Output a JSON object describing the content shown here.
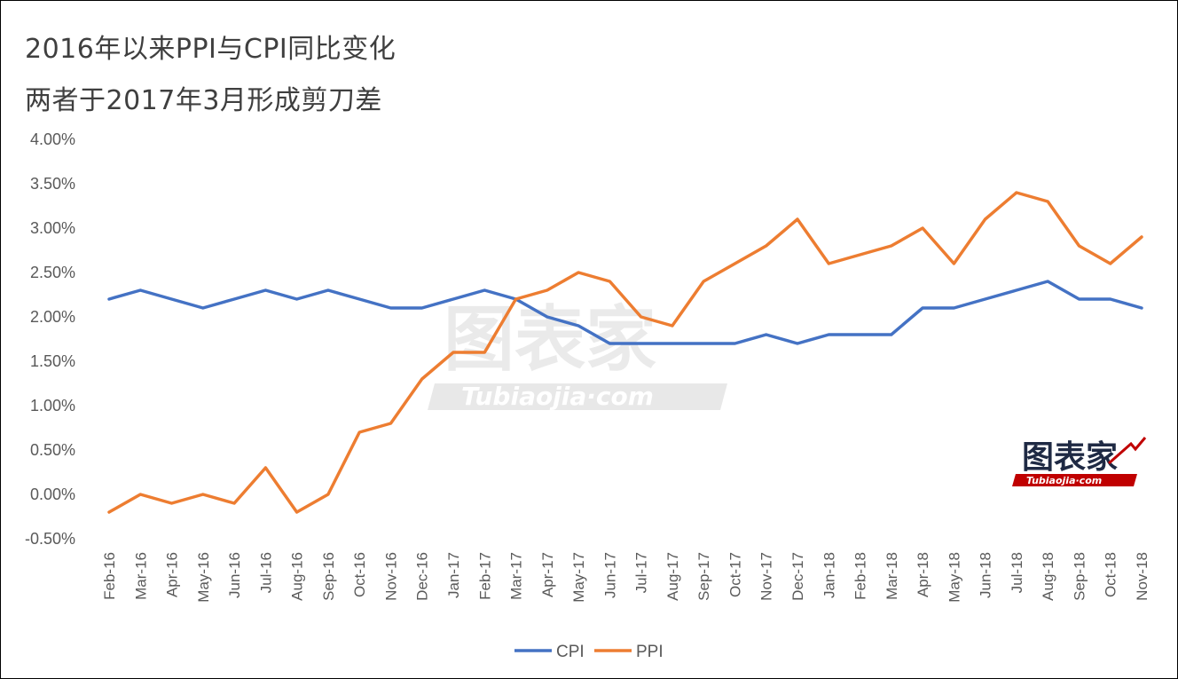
{
  "title_line1": "2016年以来PPI与CPI同比变化",
  "title_line2": "两者于2017年3月形成剪刀差",
  "watermark": {
    "main": "图表家",
    "sub": "Tubiaojia·com"
  },
  "logo": {
    "main": "图表家",
    "sub": "Tubiaojia·com"
  },
  "chart_data": {
    "type": "line",
    "x": [
      "Feb-16",
      "Mar-16",
      "Apr-16",
      "May-16",
      "Jun-16",
      "Jul-16",
      "Aug-16",
      "Sep-16",
      "Oct-16",
      "Nov-16",
      "Dec-16",
      "Jan-17",
      "Feb-17",
      "Mar-17",
      "Apr-17",
      "May-17",
      "Jun-17",
      "Jul-17",
      "Aug-17",
      "Sep-17",
      "Oct-17",
      "Nov-17",
      "Dec-17",
      "Jan-18",
      "Feb-18",
      "Mar-18",
      "Apr-18",
      "May-18",
      "Jun-18",
      "Jul-18",
      "Aug-18",
      "Sep-18",
      "Oct-18",
      "Nov-18"
    ],
    "series": [
      {
        "name": "CPI",
        "color": "#4472c4",
        "values": [
          2.2,
          2.3,
          2.2,
          2.1,
          2.2,
          2.3,
          2.2,
          2.3,
          2.2,
          2.1,
          2.1,
          2.2,
          2.3,
          2.2,
          2.0,
          1.9,
          1.7,
          1.7,
          1.7,
          1.7,
          1.7,
          1.8,
          1.7,
          1.8,
          1.8,
          1.8,
          2.1,
          2.1,
          2.2,
          2.3,
          2.4,
          2.2,
          2.2,
          2.1
        ]
      },
      {
        "name": "PPI",
        "color": "#ed7d31",
        "values": [
          -0.2,
          0.0,
          -0.1,
          0.0,
          -0.1,
          0.3,
          -0.2,
          0.0,
          0.7,
          0.8,
          1.3,
          1.6,
          1.6,
          2.2,
          2.3,
          2.5,
          2.4,
          2.0,
          1.9,
          2.4,
          2.6,
          2.8,
          3.1,
          2.6,
          2.7,
          2.8,
          3.0,
          2.6,
          3.1,
          3.4,
          3.3,
          2.8,
          2.6,
          2.9
        ]
      }
    ],
    "y_ticks": [
      "4.00%",
      "3.50%",
      "3.00%",
      "2.50%",
      "2.00%",
      "1.50%",
      "1.00%",
      "0.50%",
      "0.00%",
      "-0.50%"
    ],
    "ylim": [
      -0.5,
      4.0
    ],
    "ystep": 0.5,
    "grid": false,
    "legend": "bottom-center"
  }
}
